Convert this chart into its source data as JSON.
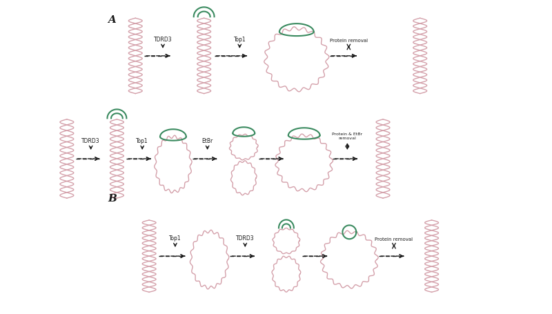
{
  "dna_color": "#d4a0aa",
  "protein_color": "#3a8a5f",
  "arrow_color": "#1a1a1a",
  "text_color": "#1a1a1a",
  "bg_color": "#ffffff",
  "label_A": "A",
  "label_B": "B",
  "figsize": [
    8.0,
    4.56
  ],
  "dpi": 100,
  "labels": {
    "TDRD3": "TDRD3",
    "Top1": "Top1",
    "Protein_removal": "Protein removal",
    "EtBr": "EtBr",
    "Protein_EtBr_removal": "Protein & EtBr\nremoval"
  }
}
